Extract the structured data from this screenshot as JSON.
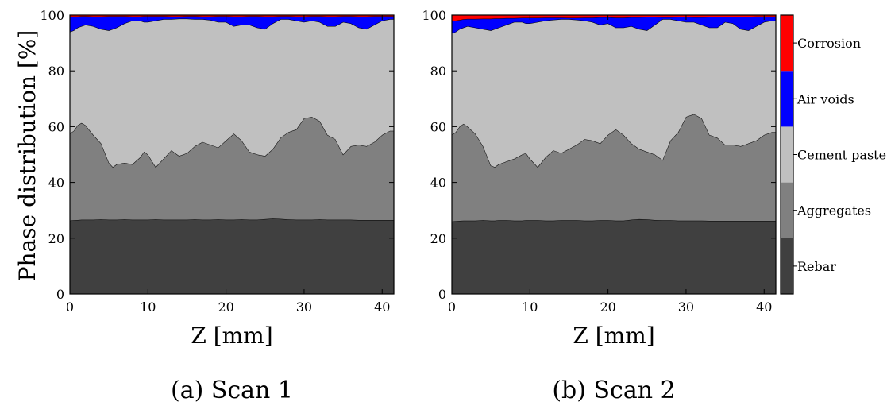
{
  "figure": {
    "ylabel": "Phase distribution [%]",
    "colorbar_labels": [
      "Rebar",
      "Aggregates",
      "Cement paste",
      "Air voids",
      "Corrosion"
    ]
  },
  "chart_data": [
    {
      "type": "area",
      "caption": "(a) Scan 1",
      "xlabel": "Z [mm]",
      "ylabel": "Phase distribution [%]",
      "xlim": [
        0,
        41.5
      ],
      "ylim": [
        0,
        100
      ],
      "xticks": [
        0,
        10,
        20,
        30,
        40
      ],
      "yticks": [
        0,
        20,
        40,
        60,
        80,
        100
      ],
      "x": [
        0,
        0.5,
        1,
        1.5,
        2,
        3,
        4,
        5,
        5.5,
        6,
        7,
        8,
        9,
        9.5,
        10,
        11,
        12,
        13,
        14,
        15,
        16,
        17,
        18,
        19,
        20,
        21,
        22,
        23,
        24,
        25,
        26,
        27,
        28,
        29,
        30,
        31,
        32,
        33,
        34,
        35,
        36,
        37,
        38,
        39,
        40,
        41,
        41.5
      ],
      "stacked_cumulative": true,
      "series": [
        {
          "name": "Rebar",
          "color": "#404040",
          "values": [
            26.3,
            26.4,
            26.5,
            26.6,
            26.6,
            26.6,
            26.7,
            26.6,
            26.6,
            26.6,
            26.7,
            26.6,
            26.6,
            26.6,
            26.6,
            26.7,
            26.6,
            26.6,
            26.6,
            26.6,
            26.7,
            26.6,
            26.6,
            26.7,
            26.6,
            26.6,
            26.7,
            26.6,
            26.6,
            26.8,
            27.0,
            26.9,
            26.7,
            26.6,
            26.6,
            26.6,
            26.7,
            26.6,
            26.6,
            26.6,
            26.6,
            26.5,
            26.5,
            26.5,
            26.5,
            26.5,
            26.5
          ]
        },
        {
          "name": "Aggregates",
          "color": "#808080",
          "values": [
            57.5,
            58.5,
            60.5,
            61.3,
            60.5,
            57,
            54,
            47,
            45.5,
            46.5,
            47,
            46.5,
            49,
            51,
            50,
            45.5,
            48.5,
            51.5,
            49.5,
            50.5,
            53,
            54.5,
            53.5,
            52.5,
            55,
            57.5,
            55,
            51,
            50,
            49.5,
            52,
            56,
            58,
            59,
            63,
            63.5,
            62,
            57,
            55.5,
            50,
            53,
            53.5,
            53,
            54.5,
            57,
            58.5,
            58.5
          ]
        },
        {
          "name": "Cement paste",
          "color": "#c0c0c0",
          "values": [
            94,
            94.5,
            95.5,
            96,
            96.5,
            96,
            95,
            94.5,
            95,
            95.5,
            97,
            98,
            98,
            97.5,
            97.5,
            98,
            98.5,
            98.5,
            98.7,
            98.7,
            98.5,
            98.5,
            98.2,
            97.5,
            97.5,
            96,
            96.5,
            96.5,
            95.5,
            95,
            97,
            98.5,
            98.5,
            98,
            97.5,
            98,
            97.5,
            96,
            96,
            97.5,
            97,
            95.5,
            95,
            96.5,
            98,
            98.5,
            98.5
          ]
        },
        {
          "name": "Air voids",
          "color": "#0000ff",
          "values": [
            99.5,
            99.5,
            99.5,
            99.6,
            99.6,
            99.5,
            99.5,
            99.6,
            99.6,
            99.6,
            99.6,
            99.5,
            99.5,
            99.6,
            99.6,
            99.6,
            99.6,
            99.5,
            99.5,
            99.6,
            99.6,
            99.5,
            99.5,
            99.6,
            99.6,
            99.5,
            99.5,
            99.6,
            99.6,
            99.5,
            99.5,
            99.6,
            99.6,
            99.5,
            99.5,
            99.6,
            99.6,
            99.5,
            99.5,
            99.6,
            99.6,
            99.5,
            99.5,
            99.6,
            99.6,
            99.6,
            99.6
          ]
        },
        {
          "name": "Corrosion",
          "color": "#ff0000",
          "values": [
            100,
            100,
            100,
            100,
            100,
            100,
            100,
            100,
            100,
            100,
            100,
            100,
            100,
            100,
            100,
            100,
            100,
            100,
            100,
            100,
            100,
            100,
            100,
            100,
            100,
            100,
            100,
            100,
            100,
            100,
            100,
            100,
            100,
            100,
            100,
            100,
            100,
            100,
            100,
            100,
            100,
            100,
            100,
            100,
            100,
            100,
            100
          ]
        }
      ]
    },
    {
      "type": "area",
      "caption": "(b) Scan 2",
      "xlabel": "Z [mm]",
      "ylabel": "",
      "xlim": [
        0,
        41.5
      ],
      "ylim": [
        0,
        100
      ],
      "xticks": [
        0,
        10,
        20,
        30,
        40
      ],
      "yticks": [
        0,
        20,
        40,
        60,
        80,
        100
      ],
      "x": [
        0,
        0.5,
        1,
        1.5,
        2,
        3,
        4,
        5,
        5.5,
        6,
        7,
        8,
        9,
        9.5,
        10,
        11,
        12,
        13,
        14,
        15,
        16,
        17,
        18,
        19,
        20,
        21,
        22,
        23,
        24,
        25,
        26,
        27,
        28,
        29,
        30,
        31,
        32,
        33,
        34,
        35,
        36,
        37,
        38,
        39,
        40,
        41,
        41.5
      ],
      "stacked_cumulative": true,
      "series": [
        {
          "name": "Rebar",
          "color": "#404040",
          "values": [
            26,
            26.1,
            26.2,
            26.3,
            26.3,
            26.3,
            26.4,
            26.3,
            26.3,
            26.4,
            26.4,
            26.3,
            26.3,
            26.4,
            26.4,
            26.4,
            26.3,
            26.3,
            26.4,
            26.4,
            26.4,
            26.3,
            26.3,
            26.4,
            26.4,
            26.3,
            26.3,
            26.6,
            26.8,
            26.7,
            26.5,
            26.4,
            26.4,
            26.3,
            26.3,
            26.3,
            26.3,
            26.2,
            26.2,
            26.2,
            26.2,
            26.2,
            26.2,
            26.2,
            26.2,
            26.2,
            26.2
          ]
        },
        {
          "name": "Aggregates",
          "color": "#808080",
          "values": [
            57,
            58,
            60,
            61,
            60,
            57.5,
            53,
            46,
            45.5,
            46.5,
            47.5,
            48.5,
            50,
            50.5,
            48.5,
            45.5,
            49,
            51.5,
            50.5,
            52,
            53.5,
            55.5,
            55,
            54,
            57,
            59,
            57,
            54,
            52,
            51,
            50,
            48,
            55,
            58,
            63.5,
            64.5,
            63,
            57,
            56,
            53.5,
            53.5,
            53,
            54,
            55,
            57,
            58,
            58
          ]
        },
        {
          "name": "Cement paste",
          "color": "#c0c0c0",
          "values": [
            93.5,
            94,
            95,
            95.5,
            96,
            95.5,
            95,
            94.5,
            95,
            95.5,
            96.5,
            97.5,
            97.5,
            97,
            97,
            97.5,
            98,
            98.3,
            98.5,
            98.5,
            98.3,
            98,
            97.5,
            96.5,
            97,
            95.5,
            95.5,
            96,
            95,
            94.5,
            96.5,
            98.5,
            98.5,
            98,
            97.5,
            97.5,
            96.5,
            95.5,
            95.5,
            97.5,
            97,
            95,
            94.5,
            96,
            97.5,
            98,
            98
          ]
        },
        {
          "name": "Air voids",
          "color": "#0000ff",
          "values": [
            97.8,
            98,
            98.2,
            98.5,
            98.6,
            98.6,
            98.7,
            98.7,
            98.8,
            98.8,
            98.9,
            98.9,
            99,
            99,
            99,
            99,
            99.1,
            99.1,
            99.1,
            99,
            99,
            99.1,
            99.1,
            99.2,
            99.2,
            99.1,
            99.1,
            99.2,
            99.2,
            99.3,
            99.3,
            99.2,
            99.2,
            99.3,
            99.3,
            99.2,
            99.2,
            99.3,
            99.3,
            99.4,
            99.4,
            99.4,
            99.4,
            99.5,
            99.5,
            99.5,
            99.5
          ]
        },
        {
          "name": "Corrosion",
          "color": "#ff0000",
          "values": [
            100,
            100,
            100,
            100,
            100,
            100,
            100,
            100,
            100,
            100,
            100,
            100,
            100,
            100,
            100,
            100,
            100,
            100,
            100,
            100,
            100,
            100,
            100,
            100,
            100,
            100,
            100,
            100,
            100,
            100,
            100,
            100,
            100,
            100,
            100,
            100,
            100,
            100,
            100,
            100,
            100,
            100,
            100,
            100,
            100,
            100,
            100
          ]
        }
      ]
    }
  ]
}
